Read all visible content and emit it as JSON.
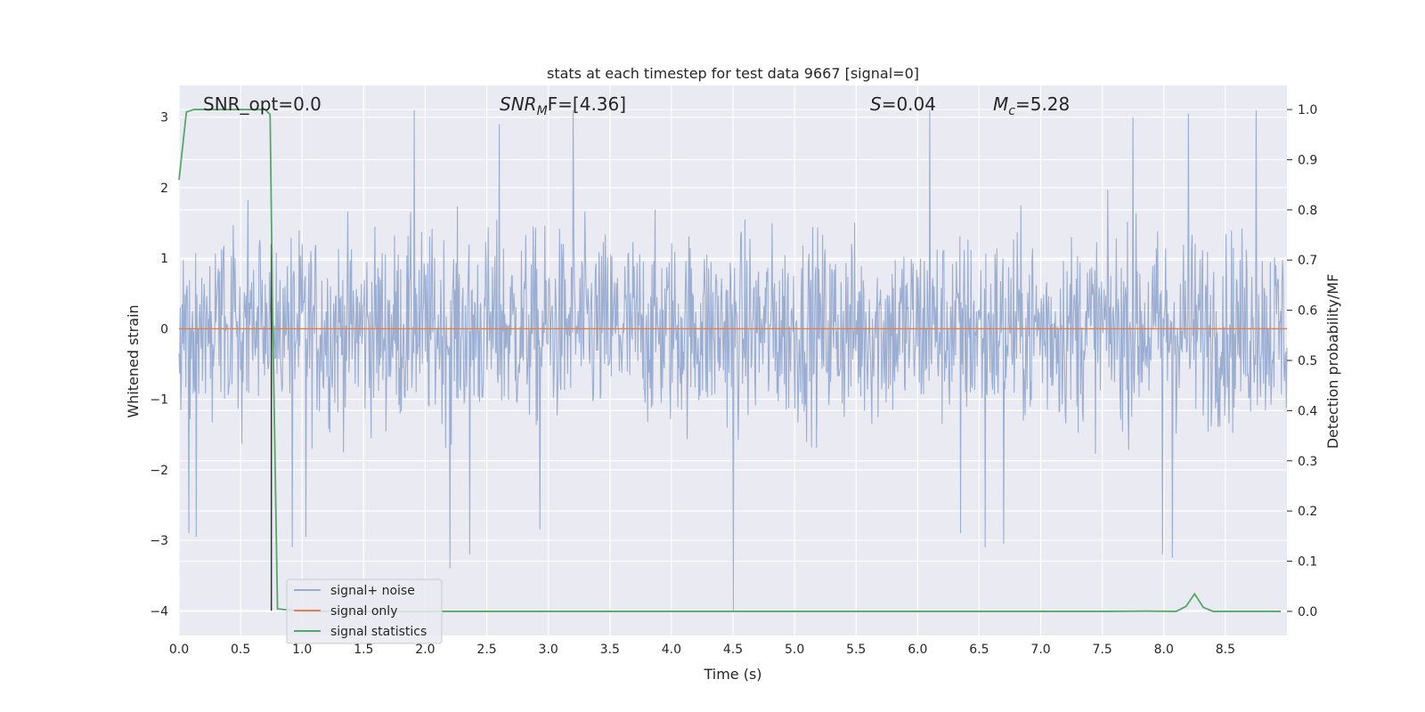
{
  "chart_data": {
    "type": "line",
    "title": "stats at each timestep for test data 9667 [signal=0]",
    "xlabel": "Time (s)",
    "ylabel_left": "Whitened strain",
    "ylabel_right": "Detection probability/MF",
    "xlim": [
      0.0,
      9.0
    ],
    "ylim_left": [
      -4.35,
      3.45
    ],
    "ylim_right": [
      -0.048,
      1.048
    ],
    "xticks": [
      "0.0",
      "0.5",
      "1.0",
      "1.5",
      "2.0",
      "2.5",
      "3.0",
      "3.5",
      "4.0",
      "4.5",
      "5.0",
      "5.5",
      "6.0",
      "6.5",
      "7.0",
      "7.5",
      "8.0",
      "8.5"
    ],
    "yticks_left": [
      "3",
      "2",
      "1",
      "0",
      "−1",
      "−2",
      "−3",
      "−4"
    ],
    "yticks_right": [
      "1.0",
      "0.9",
      "0.8",
      "0.7",
      "0.6",
      "0.5",
      "0.4",
      "0.3",
      "0.2",
      "0.1",
      "0.0"
    ],
    "grid": true,
    "legend_position": "lower-left",
    "annotations": {
      "snr_opt": "SNR_opt=0.0",
      "snr_mf_base": "SNR",
      "snr_mf_sub": "M",
      "snr_mf_rest": "F=[4.36]",
      "s_var": "S",
      "s_rest": "=0.04",
      "mc_base": "M",
      "mc_sub": "c",
      "mc_rest": "=5.28"
    },
    "series": [
      {
        "name": "signal+ noise",
        "axis": "left",
        "color": "#97abd0",
        "description_stats": {
          "samples": 1800,
          "typical_range": [
            -2.0,
            2.0
          ],
          "max": 3.1,
          "min": -4.0
        },
        "spikes": [
          {
            "x": 0.08,
            "y": -2.9
          },
          {
            "x": 0.14,
            "y": -2.95
          },
          {
            "x": 0.92,
            "y": -3.1
          },
          {
            "x": 1.03,
            "y": -2.95
          },
          {
            "x": 1.91,
            "y": 3.1
          },
          {
            "x": 2.2,
            "y": -3.4
          },
          {
            "x": 2.36,
            "y": -3.2
          },
          {
            "x": 2.6,
            "y": 2.9
          },
          {
            "x": 2.93,
            "y": -2.85
          },
          {
            "x": 3.2,
            "y": 3.1
          },
          {
            "x": 4.5,
            "y": -4.0
          },
          {
            "x": 6.1,
            "y": 3.1
          },
          {
            "x": 6.35,
            "y": -2.9
          },
          {
            "x": 6.55,
            "y": -3.1
          },
          {
            "x": 6.7,
            "y": -3.05
          },
          {
            "x": 7.75,
            "y": 3.0
          },
          {
            "x": 7.99,
            "y": -3.2
          },
          {
            "x": 8.07,
            "y": -3.25
          },
          {
            "x": 8.2,
            "y": 3.05
          },
          {
            "x": 8.75,
            "y": 3.1
          }
        ]
      },
      {
        "name": "signal only",
        "axis": "left",
        "color": "#dd8452",
        "x": [
          0.0,
          9.0
        ],
        "y": [
          0.0,
          0.0
        ]
      },
      {
        "name": "signal statistics",
        "axis": "right",
        "color": "#55a868",
        "x": [
          0.0,
          0.06,
          0.12,
          0.3,
          0.5,
          0.62,
          0.7,
          0.74,
          0.76,
          0.8,
          1.0,
          2.0,
          4.0,
          6.0,
          7.5,
          7.85,
          8.1,
          8.18,
          8.25,
          8.32,
          8.4,
          8.6,
          8.95
        ],
        "y": [
          0.86,
          0.995,
          1.0,
          1.0,
          1.0,
          1.0,
          1.0,
          0.99,
          0.6,
          0.005,
          0.0,
          0.0,
          0.0,
          0.0,
          0.0,
          0.0005,
          0.0,
          0.01,
          0.035,
          0.008,
          0.0,
          0.0,
          0.0
        ]
      }
    ]
  }
}
